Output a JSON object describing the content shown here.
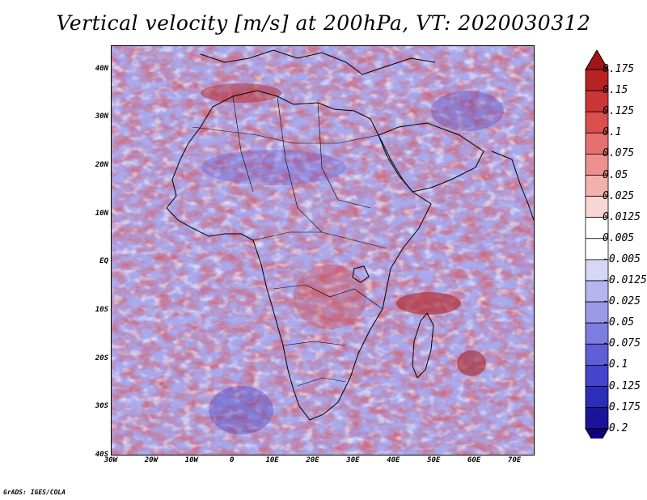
{
  "title": "Vertical velocity [m/s] at 200hPa, VT: 2020030312",
  "footer": "GrADS: IGES/COLA",
  "colors": {
    "strong_up": "#9b1c1c",
    "weak_up": "#f2b6b2",
    "neutral": "#ffffff",
    "weak_down": "#b9b9f0",
    "strong_down": "#2a1a9e",
    "coastline": "#000000"
  },
  "map": {
    "lon_range": [
      -30,
      75
    ],
    "lat_range": [
      -40,
      45
    ],
    "lon_ticks": [
      {
        "value": -30,
        "label": "30W"
      },
      {
        "value": -20,
        "label": "20W"
      },
      {
        "value": -10,
        "label": "10W"
      },
      {
        "value": 0,
        "label": "0"
      },
      {
        "value": 10,
        "label": "10E"
      },
      {
        "value": 20,
        "label": "20E"
      },
      {
        "value": 30,
        "label": "30E"
      },
      {
        "value": 40,
        "label": "40E"
      },
      {
        "value": 50,
        "label": "50E"
      },
      {
        "value": 60,
        "label": "60E"
      },
      {
        "value": 70,
        "label": "70E"
      }
    ],
    "lat_ticks": [
      {
        "value": 40,
        "label": "40N"
      },
      {
        "value": 30,
        "label": "30N"
      },
      {
        "value": 20,
        "label": "20N"
      },
      {
        "value": 10,
        "label": "10N"
      },
      {
        "value": 0,
        "label": "EQ"
      },
      {
        "value": -10,
        "label": "10S"
      },
      {
        "value": -20,
        "label": "20S"
      },
      {
        "value": -30,
        "label": "30S"
      },
      {
        "value": -40,
        "label": "40S"
      }
    ]
  },
  "legend": {
    "labels": [
      "0.175",
      "0.15",
      "0.125",
      "0.1",
      "0.075",
      "0.05",
      "0.025",
      "0.0125",
      "0.005",
      "-0.005",
      "-0.0125",
      "-0.025",
      "-0.05",
      "-0.075",
      "-0.1",
      "-0.125",
      "-0.175",
      "-0.2"
    ],
    "colors": [
      "#a11515",
      "#b82222",
      "#cc3535",
      "#db4f4f",
      "#e47070",
      "#ec9090",
      "#f3b1ae",
      "#f9d5d3",
      "#ffffff",
      "#ffffff",
      "#d6d6f7",
      "#b6b6ef",
      "#9a9ae8",
      "#7d7de0",
      "#5e5ed7",
      "#4444cc",
      "#2d2db8",
      "#1a1499",
      "#12007a"
    ]
  }
}
